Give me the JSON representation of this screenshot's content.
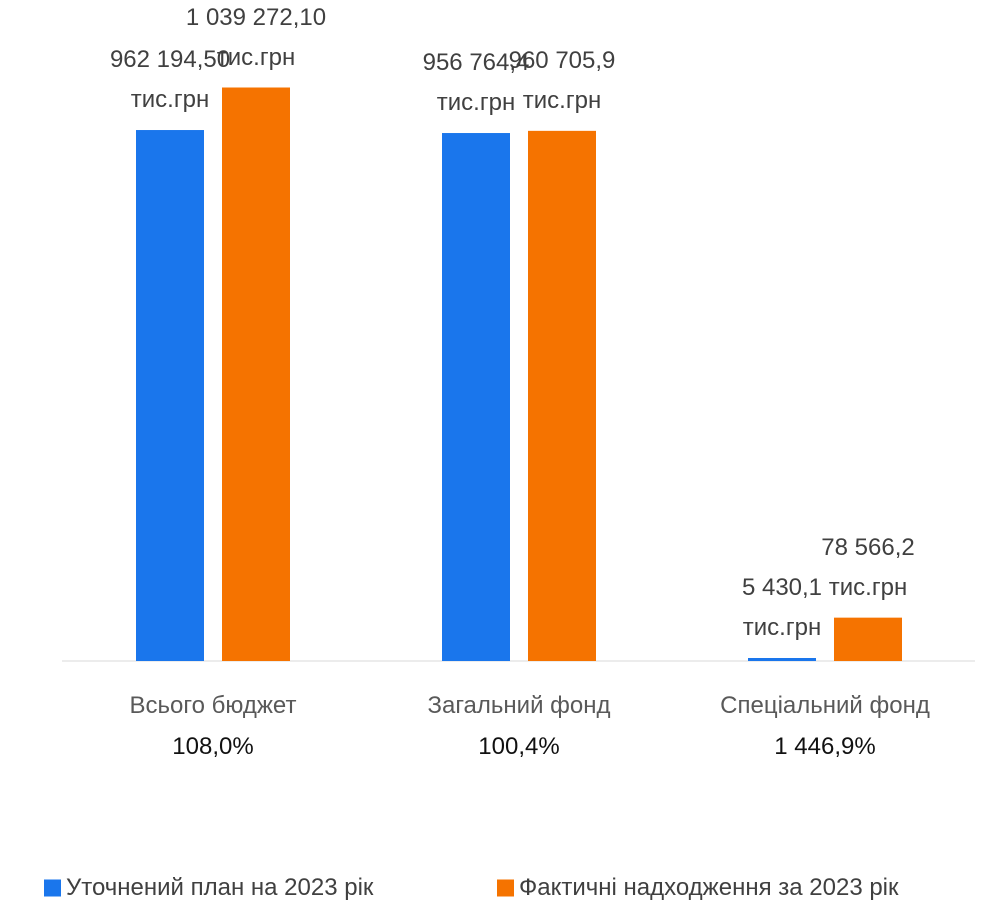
{
  "chart_data": {
    "type": "bar",
    "categories": [
      "Всього бюджет",
      "Загальний фонд",
      "Спеціальний фонд"
    ],
    "annotations": [
      "108,0%",
      "100,4%",
      "1 446,9%"
    ],
    "series": [
      {
        "name": "Уточнений план на 2023 рік",
        "color": "#1a76ec",
        "values": [
          962194.5,
          956764.4,
          5430.1
        ],
        "value_labels": [
          "962 194,50\nтис.грн",
          "956 764,4\nтис.грн",
          "5 430,1\nтис.грн"
        ]
      },
      {
        "name": "Фактичні надходження за 2023 рік",
        "color": "#f57300",
        "values": [
          1039272.1,
          960705.9,
          78566.2
        ],
        "value_labels": [
          "1 039 272,10\nтис.грн",
          "960 705,9\nтис.грн",
          "78 566,2\nтис.грн"
        ]
      }
    ],
    "legend": "bottom"
  }
}
